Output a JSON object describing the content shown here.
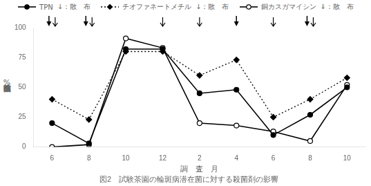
{
  "chart_data": {
    "type": "line",
    "title": "図2　試験茶園の輪斑病潜在菌に対する殺菌剤の影響",
    "x_label": "調　査　月",
    "y_label": "輪斑病菌検出率%",
    "categories": [
      "6",
      "8",
      "10",
      "12",
      "2",
      "4",
      "6",
      "8",
      "10"
    ],
    "series": [
      {
        "name": "TPN",
        "color": "#000000",
        "marker": "circle",
        "line_style": "solid",
        "spray_label": "↓：散　布",
        "values": [
          20,
          3,
          82,
          82,
          45,
          48,
          10,
          27,
          50
        ]
      },
      {
        "name": "チオファネートメチル",
        "color": "#000000",
        "marker": "diamond",
        "line_style": "dotted",
        "spray_label": "↓：散　布",
        "values": [
          40,
          23,
          80,
          80,
          60,
          73,
          25,
          40,
          58
        ]
      },
      {
        "name": "銅カスガマイシン",
        "color": "#000000",
        "marker": "open_circle",
        "line_style": "solid",
        "spray_label": "⇓：散　布",
        "values": [
          0,
          2,
          91,
          83,
          20,
          18,
          13,
          5,
          52
        ]
      }
    ],
    "sprays": [
      {
        "marker": "filled_arrow",
        "positions": [
          0,
          1,
          5,
          7
        ]
      },
      {
        "marker": "open_arrow",
        "positions": [
          0,
          1,
          3,
          4,
          6,
          7
        ]
      }
    ],
    "ylim": [
      0,
      100
    ],
    "yticks": [
      0,
      25,
      50,
      75,
      100
    ],
    "grid": false
  }
}
